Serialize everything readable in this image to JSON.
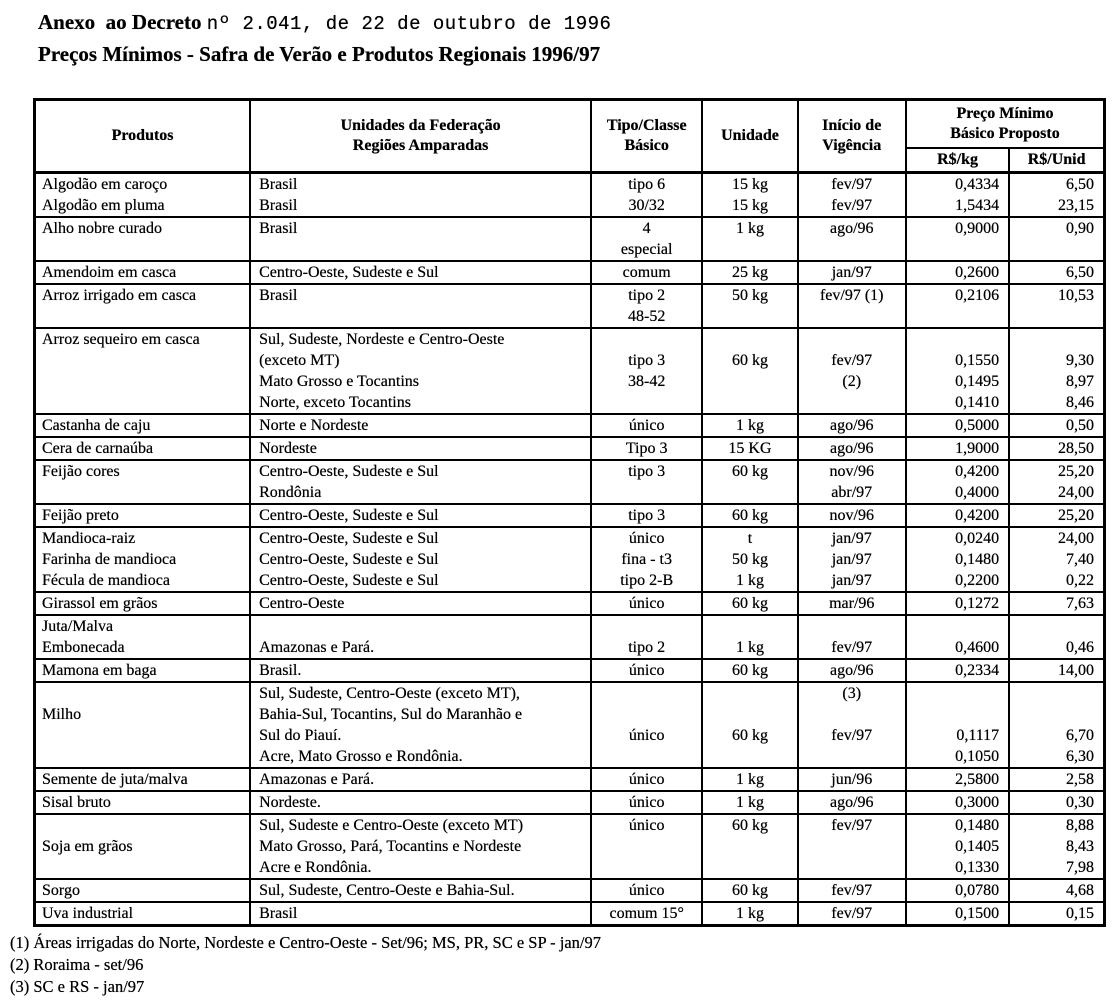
{
  "title": {
    "decree_prefix": "Anexo  ao Decreto",
    "decree_number": "nº 2.041, de 22 de outubro de 1996",
    "subtitle": "Preços Mínimos - Safra de Verão e Produtos Regionais 1996/97"
  },
  "table": {
    "header": {
      "produtos": "Produtos",
      "unidades": [
        "Unidades da Federação",
        "Regiões Amparadas"
      ],
      "tipo": [
        "Tipo/Classe",
        "Básico"
      ],
      "unidade": "Unidade",
      "vigencia": [
        "Início de",
        "Vigência"
      ],
      "preco": [
        "Preço Mínimo",
        "Básico Proposto"
      ],
      "preco_sub": [
        "R$/kg",
        "R$/Unid"
      ]
    },
    "column_keys": [
      "produto",
      "regiao",
      "tipo",
      "unidade",
      "vigencia",
      "preco-kg",
      "preco-unid"
    ],
    "groups": [
      [
        [
          "Algodão em caroço",
          "Brasil",
          "tipo 6",
          "15 kg",
          "fev/97",
          "0,4334",
          "6,50"
        ],
        [
          "Algodão em pluma",
          "Brasil",
          "30/32",
          "15 kg",
          "fev/97",
          "1,5434",
          "23,15"
        ]
      ],
      [
        [
          "Alho nobre curado",
          "Brasil",
          "4",
          "1 kg",
          "ago/96",
          "0,9000",
          "0,90"
        ],
        [
          "",
          "",
          "especial",
          "",
          "",
          "",
          ""
        ]
      ],
      [
        [
          "Amendoim em casca",
          "Centro-Oeste, Sudeste e Sul",
          "comum",
          "25 kg",
          "jan/97",
          "0,2600",
          "6,50"
        ]
      ],
      [
        [
          "Arroz irrigado em casca",
          "Brasil",
          "tipo 2",
          "50 kg",
          "fev/97 (1)",
          "0,2106",
          "10,53"
        ],
        [
          "",
          "",
          "48-52",
          "",
          "",
          "",
          ""
        ]
      ],
      [
        [
          "Arroz sequeiro em casca",
          "Sul, Sudeste, Nordeste e Centro-Oeste",
          "",
          "",
          "",
          "",
          ""
        ],
        [
          "",
          "(exceto MT)",
          "tipo 3",
          "60 kg",
          "fev/97",
          "0,1550",
          "9,30"
        ],
        [
          "",
          "Mato Grosso e Tocantins",
          "38-42",
          "",
          "(2)",
          "0,1495",
          "8,97"
        ],
        [
          "",
          "Norte, exceto Tocantins",
          "",
          "",
          "",
          "0,1410",
          "8,46"
        ]
      ],
      [
        [
          "Castanha de caju",
          "Norte e Nordeste",
          "único",
          "1 kg",
          "ago/96",
          "0,5000",
          "0,50"
        ]
      ],
      [
        [
          "Cera de carnaúba",
          "Nordeste",
          "Tipo 3",
          "15 KG",
          "ago/96",
          "1,9000",
          "28,50"
        ]
      ],
      [
        [
          "Feijão cores",
          "Centro-Oeste, Sudeste e Sul",
          "tipo 3",
          "60 kg",
          "nov/96",
          "0,4200",
          "25,20"
        ],
        [
          "",
          "Rondônia",
          "",
          "",
          "abr/97",
          "0,4000",
          "24,00"
        ]
      ],
      [
        [
          "Feijão preto",
          "Centro-Oeste, Sudeste e Sul",
          "tipo 3",
          "60 kg",
          "nov/96",
          "0,4200",
          "25,20"
        ]
      ],
      [
        [
          "Mandioca-raiz",
          "Centro-Oeste, Sudeste e Sul",
          "único",
          "t",
          "jan/97",
          "0,0240",
          "24,00"
        ],
        [
          "Farinha de mandioca",
          "Centro-Oeste, Sudeste e Sul",
          "fina - t3",
          "50 kg",
          "jan/97",
          "0,1480",
          "7,40"
        ],
        [
          "Fécula de mandioca",
          "Centro-Oeste, Sudeste e Sul",
          "tipo 2-B",
          "1 kg",
          "jan/97",
          "0,2200",
          "0,22"
        ]
      ],
      [
        [
          "Girassol em grãos",
          "Centro-Oeste",
          "único",
          "60 kg",
          "mar/96",
          "0,1272",
          "7,63"
        ]
      ],
      [
        [
          "Juta/Malva",
          "",
          "",
          "",
          "",
          "",
          ""
        ],
        [
          "Embonecada",
          "Amazonas e Pará.",
          "tipo 2",
          "1 kg",
          "fev/97",
          "0,4600",
          "0,46"
        ]
      ],
      [
        [
          "Mamona em baga",
          "Brasil.",
          "único",
          "60 kg",
          "ago/96",
          "0,2334",
          "14,00"
        ]
      ],
      [
        [
          "",
          "Sul, Sudeste, Centro-Oeste (exceto MT),",
          "",
          "",
          "(3)",
          "",
          ""
        ],
        [
          "Milho",
          "Bahia-Sul, Tocantins, Sul do Maranhão e",
          "",
          "",
          "",
          "",
          ""
        ],
        [
          "",
          "Sul do Piauí.",
          "único",
          "60 kg",
          "fev/97",
          "0,1117",
          "6,70"
        ],
        [
          "",
          "Acre, Mato Grosso e Rondônia.",
          "",
          "",
          "",
          "0,1050",
          "6,30"
        ]
      ],
      [
        [
          "Semente de juta/malva",
          "Amazonas e Pará.",
          "único",
          "1 kg",
          "jun/96",
          "2,5800",
          "2,58"
        ]
      ],
      [
        [
          "Sisal bruto",
          "Nordeste.",
          "único",
          "1 kg",
          "ago/96",
          "0,3000",
          "0,30"
        ]
      ],
      [
        [
          "",
          "Sul, Sudeste e Centro-Oeste (exceto MT)",
          "único",
          "60 kg",
          "fev/97",
          "0,1480",
          "8,88"
        ],
        [
          "Soja em grãos",
          "Mato Grosso, Pará, Tocantins e Nordeste",
          "",
          "",
          "",
          "0,1405",
          "8,43"
        ],
        [
          "",
          "Acre e Rondônia.",
          "",
          "",
          "",
          "0,1330",
          "7,98"
        ]
      ],
      [
        [
          "Sorgo",
          "Sul, Sudeste, Centro-Oeste e Bahia-Sul.",
          "único",
          "60 kg",
          "fev/97",
          "0,0780",
          "4,68"
        ]
      ],
      [
        [
          "Uva industrial",
          "Brasil",
          "comum 15°",
          "1 kg",
          "fev/97",
          "0,1500",
          "0,15"
        ]
      ]
    ]
  },
  "footnotes": [
    "(1) Áreas irrigadas do Norte, Nordeste e Centro-Oeste - Set/96; MS, PR, SC e SP - jan/97",
    "(2) Roraima - set/96",
    "(3) SC e RS - jan/97"
  ]
}
